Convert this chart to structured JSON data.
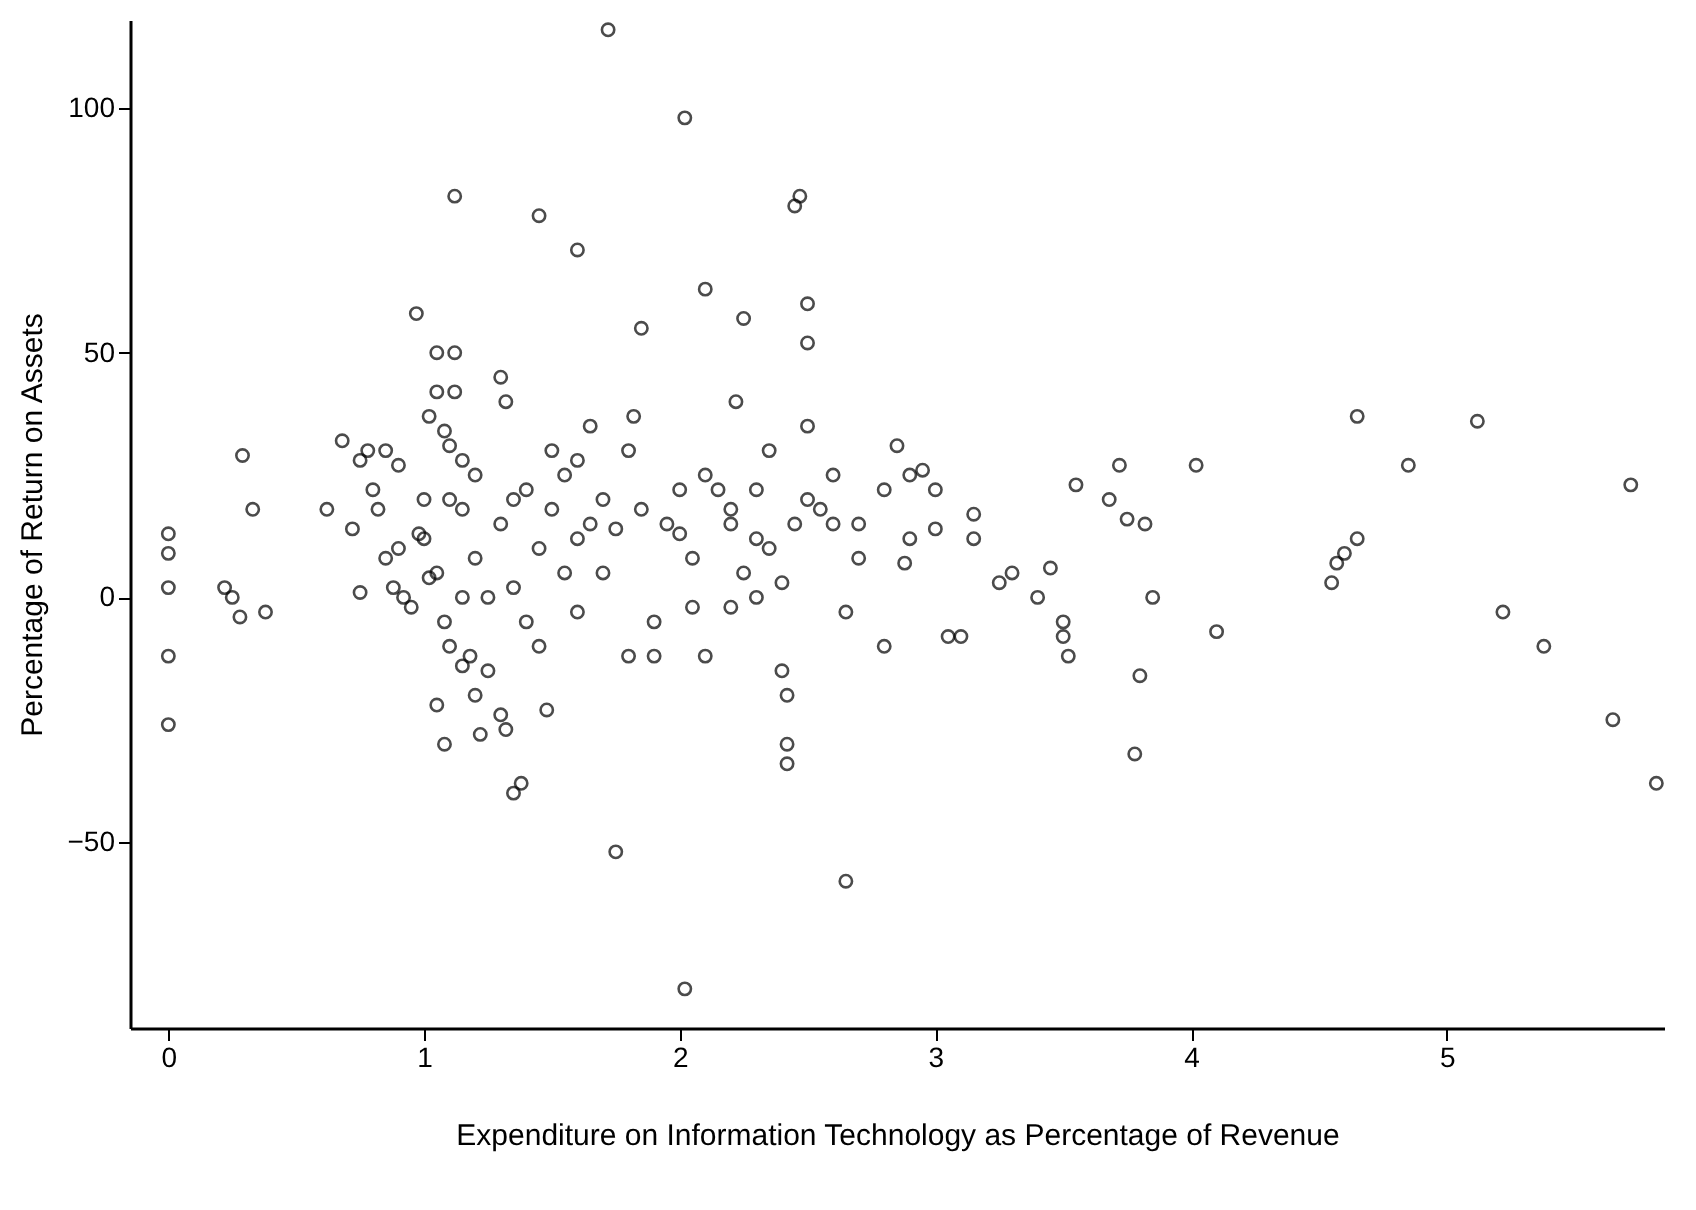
{
  "chart_data": {
    "type": "scatter",
    "xlabel": "Expenditure on Information Technology as Percentage of Revenue",
    "ylabel": "Percentage of Return on Assets",
    "xlim": [
      -0.15,
      5.85
    ],
    "ylim": [
      -88,
      118
    ],
    "xticks": [
      0,
      1,
      2,
      3,
      4,
      5
    ],
    "yticks": [
      -50,
      0,
      50,
      100
    ],
    "grid": false,
    "marker": "circle",
    "x": [
      0,
      0,
      0,
      0,
      0,
      0.22,
      0.25,
      0.28,
      0.29,
      0.33,
      0.38,
      0.62,
      0.68,
      0.72,
      0.75,
      0.78,
      0.8,
      0.82,
      0.85,
      0.85,
      0.9,
      0.88,
      0.92,
      0.95,
      0.75,
      0.98,
      1.0,
      1.0,
      0.97,
      1.02,
      1.05,
      1.05,
      1.08,
      1.1,
      1.12,
      1.12,
      1.1,
      1.12,
      1.15,
      1.15,
      1.05,
      1.08,
      1.1,
      1.05,
      1.08,
      1.15,
      1.18,
      1.2,
      1.22,
      1.25,
      1.2,
      1.25,
      1.3,
      1.32,
      1.35,
      1.38,
      1.3,
      1.32,
      1.35,
      1.4,
      1.45,
      1.45,
      1.48,
      1.5,
      1.55,
      1.6,
      1.6,
      1.65,
      1.7,
      1.7,
      1.72,
      1.75,
      1.8,
      1.85,
      1.82,
      1.9,
      1.9,
      1.95,
      2.0,
      2.02,
      2.02,
      2.05,
      2.1,
      2.1,
      2.15,
      2.2,
      2.25,
      2.22,
      2.25,
      2.3,
      2.35,
      2.4,
      2.42,
      2.42,
      2.42,
      2.45,
      2.47,
      2.5,
      2.5,
      2.5,
      2.55,
      2.6,
      2.65,
      2.65,
      2.7,
      2.8,
      2.8,
      2.85,
      2.9,
      2.95,
      3.0,
      3.0,
      3.05,
      3.1,
      3.15,
      3.15,
      3.25,
      3.3,
      3.4,
      3.45,
      3.5,
      3.5,
      3.52,
      3.55,
      3.68,
      3.72,
      3.75,
      3.78,
      3.8,
      3.82,
      3.85,
      4.02,
      4.1,
      4.55,
      4.57,
      4.6,
      4.65,
      4.65,
      4.85,
      5.12,
      5.22,
      5.38,
      5.65,
      5.72,
      5.82,
      1.3,
      1.4,
      1.45,
      1.5,
      1.55,
      1.6,
      1.65,
      1.75,
      1.8,
      1.85,
      2.0,
      2.1,
      2.2,
      2.3,
      2.35,
      2.4,
      2.45,
      2.5,
      2.6,
      2.2,
      2.3,
      1.35,
      1.2,
      1.6,
      2.05,
      2.7,
      2.9,
      2.88,
      0.9,
      1.02,
      1.15
    ],
    "values": [
      13,
      9,
      2,
      -12,
      -26,
      2,
      0,
      -4,
      29,
      18,
      -3,
      18,
      32,
      14,
      28,
      30,
      22,
      18,
      30,
      8,
      27,
      2,
      0,
      -2,
      1,
      13,
      20,
      12,
      58,
      37,
      50,
      42,
      34,
      31,
      50,
      42,
      20,
      82,
      28,
      18,
      5,
      -5,
      -10,
      -22,
      -30,
      -14,
      -12,
      -20,
      -28,
      -15,
      8,
      0,
      -24,
      -27,
      -40,
      -38,
      45,
      40,
      20,
      -5,
      78,
      -10,
      -23,
      30,
      25,
      71,
      12,
      35,
      20,
      5,
      116,
      -52,
      -12,
      55,
      37,
      -5,
      -12,
      15,
      22,
      98,
      -80,
      -2,
      -12,
      63,
      22,
      15,
      57,
      40,
      5,
      0,
      30,
      -15,
      -20,
      -30,
      -34,
      80,
      82,
      60,
      52,
      35,
      18,
      15,
      -3,
      -58,
      8,
      -10,
      22,
      31,
      25,
      26,
      22,
      14,
      -8,
      -8,
      17,
      12,
      3,
      5,
      0,
      6,
      -5,
      -8,
      -12,
      23,
      20,
      27,
      16,
      -32,
      -16,
      15,
      0,
      27,
      -7,
      3,
      7,
      9,
      12,
      37,
      27,
      36,
      -3,
      -10,
      -25,
      23,
      -38,
      15,
      22,
      10,
      18,
      5,
      28,
      15,
      14,
      30,
      18,
      13,
      25,
      18,
      22,
      10,
      3,
      15,
      20,
      25,
      -2,
      12,
      2,
      25,
      -3,
      8,
      15,
      12,
      7,
      10,
      4,
      0
    ],
    "color": "#000000"
  }
}
